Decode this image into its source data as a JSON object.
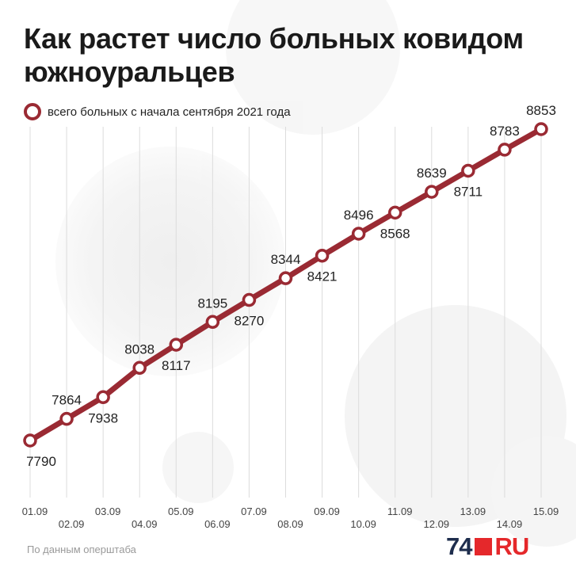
{
  "header": {
    "title": "Как растет число больных ковидом южноуральцев"
  },
  "colors": {
    "series": "#9a2a33",
    "grid": "#dcdcdc",
    "logo_dark": "#1e2d4d",
    "logo_red": "#e5282b"
  },
  "chart_data": {
    "type": "line",
    "title": "Как растет число больных ковидом южноуральцев",
    "xlabel": "",
    "ylabel": "",
    "x": [
      "01.09",
      "02.09",
      "03.09",
      "04.09",
      "05.09",
      "06.09",
      "07.09",
      "08.09",
      "09.09",
      "10.09",
      "11.09",
      "12.09",
      "13.09",
      "14.09",
      "15.09"
    ],
    "series": [
      {
        "name": "всего больных с начала сентября 2021 года",
        "values": [
          7790,
          7864,
          7938,
          8038,
          8117,
          8195,
          8270,
          8344,
          8421,
          8496,
          8568,
          8639,
          8711,
          8783,
          8853
        ]
      }
    ],
    "ylim": [
      7790,
      8853
    ],
    "grid": "vertical",
    "legend_placement": "top-left",
    "data_labels": "alternating below/above"
  },
  "footer": {
    "source": "По данным оперштаба",
    "logo_number": "74",
    "logo_suffix": "RU"
  }
}
